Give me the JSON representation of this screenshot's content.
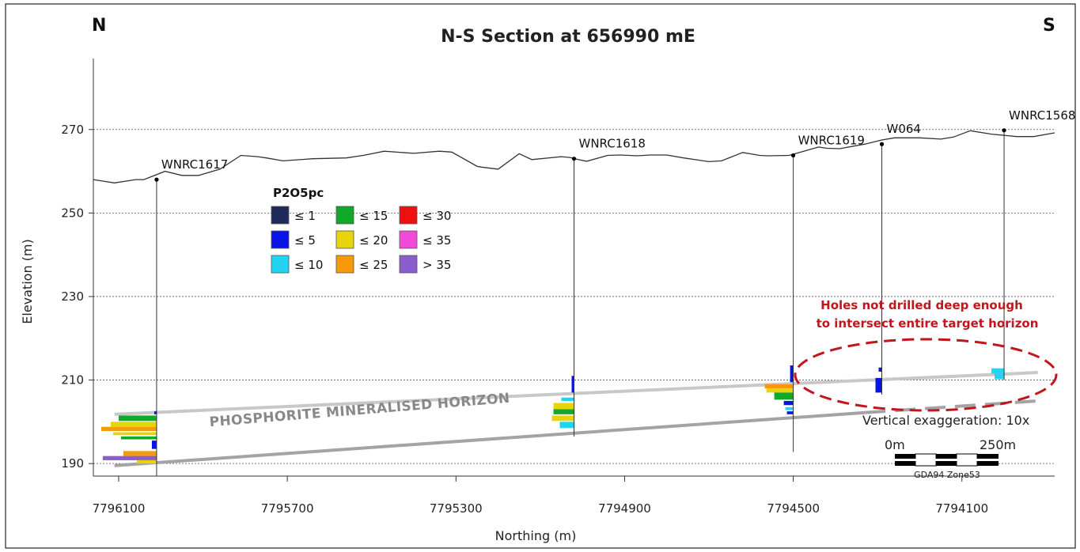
{
  "figure": {
    "title": "N-S Section at 656990 mE",
    "corner_left": "N",
    "corner_right": "S",
    "red_note_line1": "Holes not drilled deep enough",
    "red_note_line2": "to intersect entire target horizon",
    "exaggeration_note": "Vertical exaggeration: 10x",
    "horizon_label": "PHOSPHORITE MINERALISED HORIZON",
    "scale_bar": {
      "start_label": "0m",
      "end_label": "250m",
      "datum": "GDA94 Zone53"
    }
  },
  "legend": {
    "title": "P2O5pc",
    "items": [
      {
        "label": "≤ 1",
        "color": "#1f2a5a"
      },
      {
        "label": "≤ 5",
        "color": "#0a14e6"
      },
      {
        "label": "≤ 10",
        "color": "#22d4f2"
      },
      {
        "label": "≤ 15",
        "color": "#12a82a"
      },
      {
        "label": "≤ 20",
        "color": "#e6d50a"
      },
      {
        "label": "≤ 25",
        "color": "#f59a0a"
      },
      {
        "label": "≤ 30",
        "color": "#ee1010"
      },
      {
        "label": "≤ 35",
        "color": "#f24ad8"
      },
      {
        "label": "> 35",
        "color": "#8a5ccc"
      }
    ]
  },
  "chart_data": {
    "type": "line",
    "xlabel": "Northing (m)",
    "ylabel": "Elevation (m)",
    "xlim": [
      7796160,
      7793880
    ],
    "ylim": [
      187,
      287
    ],
    "xticks": [
      7796100,
      7795700,
      7795300,
      7794900,
      7794500,
      7794100
    ],
    "xtick_labels": [
      "7796100",
      "7795700",
      "7795300",
      "7794900",
      "7794500",
      "7794100"
    ],
    "yticks": [
      190,
      210,
      230,
      250,
      270
    ],
    "ytick_labels": [
      "190",
      "210",
      "230",
      "250",
      "270"
    ],
    "grid": true,
    "series": [
      {
        "x": [
          7796160,
          7796110,
          7796060,
          7796040,
          7795990,
          7795950,
          7795910,
          7795860,
          7795810,
          7795770,
          7795750,
          7795710,
          7795640,
          7795560,
          7795520,
          7795470,
          7795400,
          7795340,
          7795310,
          7795250,
          7795240,
          7795200,
          7795150,
          7795120,
          7795050,
          7795030,
          7795010,
          7794990,
          7794940,
          7794910,
          7794870,
          7794840,
          7794800,
          7794760,
          7794700,
          7794670,
          7794620,
          7794580,
          7794560,
          7794510,
          7794440,
          7794420,
          7794390,
          7794330,
          7794290,
          7794260,
          7794200,
          7794150,
          7794120,
          7794080,
          7794030,
          7793970,
          7793930,
          7793880
        ],
        "y": [
          258,
          257.2,
          258,
          258,
          260,
          259,
          259,
          260.5,
          263.8,
          263.5,
          263.2,
          262.5,
          263,
          263.2,
          263.8,
          264.8,
          264.3,
          264.8,
          264.6,
          261.2,
          261,
          260.5,
          264.2,
          262.8,
          263.5,
          263.3,
          262.8,
          262.4,
          263.8,
          263.9,
          263.7,
          263.9,
          263.9,
          263.2,
          262.3,
          262.5,
          264.5,
          263.8,
          263.7,
          263.8,
          265.8,
          265.5,
          265.4,
          266.5,
          267.5,
          268,
          268,
          267.7,
          268.2,
          269.7,
          268.9,
          268.3,
          268.3,
          269.2
        ]
      }
    ],
    "drillholes": [
      {
        "name": "WNRC1617",
        "x": 7796010,
        "top": 258,
        "bottom": 187,
        "intervals": [
          {
            "from": 202.5,
            "to": 201.8,
            "color": "#0a14e6",
            "w": 0
          },
          {
            "from": 201.5,
            "to": 200.2,
            "color": "#12a82a",
            "w": 48
          },
          {
            "from": 200.0,
            "to": 198.8,
            "color": "#e6d50a",
            "w": 58
          },
          {
            "from": 198.8,
            "to": 197.8,
            "color": "#f59a0a",
            "w": 70
          },
          {
            "from": 197.5,
            "to": 196.8,
            "color": "#e6d50a",
            "w": 55
          },
          {
            "from": 196.5,
            "to": 195.8,
            "color": "#12a82a",
            "w": 45
          },
          {
            "from": 195.5,
            "to": 193.5,
            "color": "#0a14e6",
            "w": 6
          },
          {
            "from": 193.0,
            "to": 191.8,
            "color": "#f59a0a",
            "w": 42
          },
          {
            "from": 191.8,
            "to": 190.8,
            "color": "#8a5ccc",
            "w": 68
          },
          {
            "from": 190.8,
            "to": 190.0,
            "color": "#e6d50a",
            "w": 25
          }
        ]
      },
      {
        "name": "WNRC1618",
        "x": 7795020,
        "top": 263,
        "bottom": 196.5,
        "intervals": [
          {
            "from": 211.0,
            "to": 207.0,
            "color": "#0a14e6",
            "w": 3
          },
          {
            "from": 205.8,
            "to": 205.0,
            "color": "#22d4f2",
            "w": 16
          },
          {
            "from": 204.5,
            "to": 203.0,
            "color": "#e6d50a",
            "w": 26
          },
          {
            "from": 203.0,
            "to": 201.8,
            "color": "#12a82a",
            "w": 26
          },
          {
            "from": 201.5,
            "to": 200.2,
            "color": "#e6d50a",
            "w": 28
          },
          {
            "from": 200.0,
            "to": 198.5,
            "color": "#22d4f2",
            "w": 18
          }
        ]
      },
      {
        "name": "WNRC1619",
        "x": 7794500,
        "top": 263.8,
        "bottom": 192.8,
        "intervals": [
          {
            "from": 213.5,
            "to": 209.5,
            "color": "#0a14e6",
            "w": 4
          },
          {
            "from": 209.0,
            "to": 208.0,
            "color": "#f59a0a",
            "w": 36
          },
          {
            "from": 208.0,
            "to": 207.0,
            "color": "#e6d50a",
            "w": 34
          },
          {
            "from": 207.0,
            "to": 205.3,
            "color": "#12a82a",
            "w": 24
          },
          {
            "from": 205.0,
            "to": 204.0,
            "color": "#0a14e6",
            "w": 12
          },
          {
            "from": 203.5,
            "to": 202.8,
            "color": "#22d4f2",
            "w": 10
          },
          {
            "from": 202.5,
            "to": 201.8,
            "color": "#0a14e6",
            "w": 8
          }
        ]
      },
      {
        "name": "W064",
        "x": 7794290,
        "top": 266.5,
        "bottom": 206.5,
        "intervals": [
          {
            "from": 213.0,
            "to": 212.0,
            "color": "#0a14e6",
            "w": 4
          },
          {
            "from": 210.5,
            "to": 207.0,
            "color": "#0a14e6",
            "w": 8
          }
        ]
      },
      {
        "name": "WNRC1568",
        "x": 7794000,
        "top": 269.8,
        "bottom": 210,
        "intervals": [
          {
            "from": 212.8,
            "to": 211.5,
            "color": "#22d4f2",
            "w": 16
          },
          {
            "from": 211.5,
            "to": 210.2,
            "color": "#22d4f2",
            "w": 12
          }
        ]
      }
    ],
    "horizon_top": {
      "x": [
        7796110,
        7793920
      ],
      "y": [
        201.8,
        211.8
      ]
    },
    "horizon_base": {
      "x": [
        7796110,
        7794330
      ],
      "y": [
        189.5,
        202.2
      ]
    },
    "horizon_base_projected": {
      "x": [
        7794330,
        7793920
      ],
      "y": [
        202.2,
        205.0
      ]
    }
  }
}
